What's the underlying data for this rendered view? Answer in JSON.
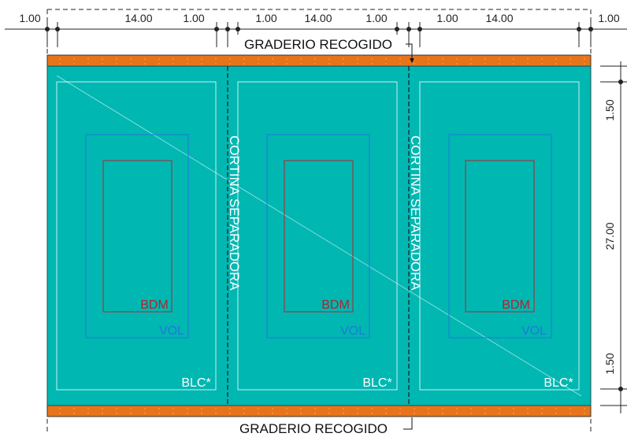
{
  "drawing": {
    "top_dimensions": [
      "1.00",
      "14.00",
      "1.00",
      "1.00",
      "14.00",
      "1.00",
      "1.00",
      "14.00",
      "1.00"
    ],
    "right_dimensions": [
      "1.50",
      "27.00",
      "1.50"
    ],
    "bleacher_label": "GRADERIO RECOGIDO",
    "curtain_label": "CORTINA SEPARADORA",
    "courts": [
      {
        "badminton": "BDM",
        "volleyball": "VOL",
        "basketball": "BLC*"
      },
      {
        "badminton": "BDM",
        "volleyball": "VOL",
        "basketball": "BLC*"
      },
      {
        "badminton": "BDM",
        "volleyball": "VOL",
        "basketball": "BLC*"
      }
    ]
  },
  "colors": {
    "floor": "#00b7b2",
    "bleacher": "#e8741a",
    "badminton_line": "#b0262c",
    "volleyball_line": "#1f7ad8",
    "basketball_line": "#ffffff"
  }
}
